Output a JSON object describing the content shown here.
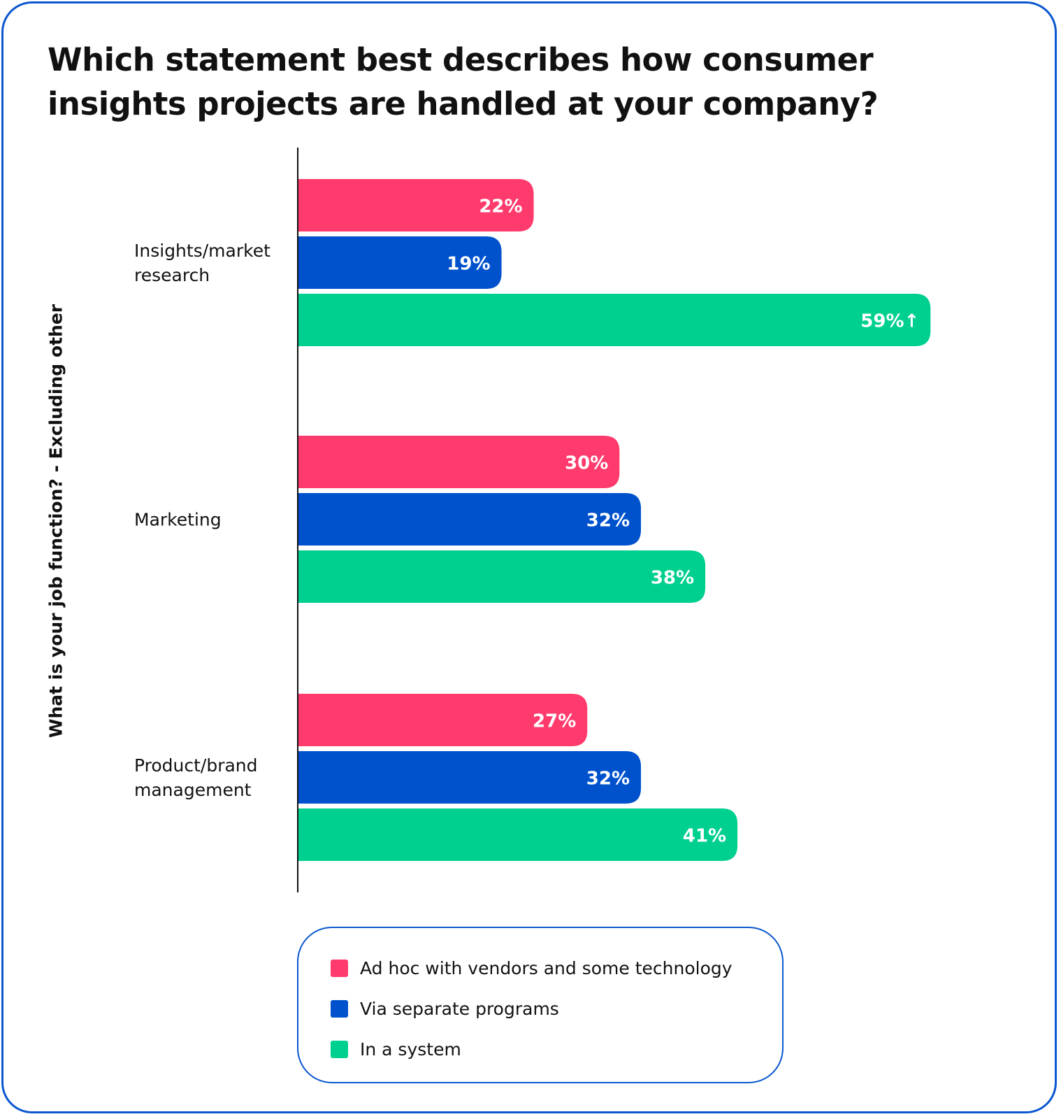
{
  "chart_data": {
    "type": "bar",
    "orientation": "horizontal",
    "title": "Which statement best describes how consumer insights projects are handled at your company?",
    "ylabel": "What is your job function? - Excluding other",
    "categories": [
      [
        "Insights/market",
        "research"
      ],
      [
        "Marketing"
      ],
      [
        "Product/brand",
        "management"
      ]
    ],
    "series": [
      {
        "name": "Ad hoc with vendors and some technology",
        "color": "#ff3b6e",
        "values": [
          22,
          30,
          27
        ],
        "labels": [
          "22%",
          "30%",
          "27%"
        ]
      },
      {
        "name": "Via separate programs",
        "color": "#0052cc",
        "values": [
          19,
          32,
          32
        ],
        "labels": [
          "19%",
          "32%",
          "32%"
        ]
      },
      {
        "name": "In a system",
        "color": "#00d08f",
        "values": [
          59,
          38,
          41
        ],
        "labels": [
          "59%↑",
          "38%",
          "41%"
        ]
      }
    ],
    "xlim": [
      0,
      61
    ],
    "grid": false,
    "legend_position": "bottom"
  }
}
